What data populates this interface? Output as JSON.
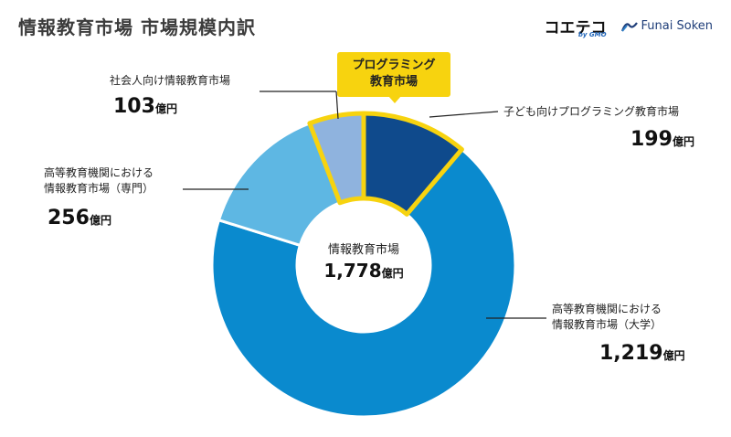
{
  "header": {
    "title": "情報教育市場 市場規模内訳",
    "logo_koetech": "コエテコ",
    "logo_koetech_sub": "by GMO",
    "logo_funai": "Funai Soken"
  },
  "callout": {
    "line1": "プログラミング",
    "line2": "教育市場"
  },
  "center": {
    "label": "情報教育市場",
    "value": "1,778",
    "unit": "億円"
  },
  "labels": {
    "kids": {
      "line1": "子ども向けプログラミング教育市場",
      "value": "199",
      "unit": "億円"
    },
    "univ": {
      "line1": "高等教育機関における",
      "line2": "情報教育市場（大学）",
      "value": "1,219",
      "unit": "億円"
    },
    "college": {
      "line1": "高等教育機関における",
      "line2": "情報教育市場（専門）",
      "value": "256",
      "unit": "億円"
    },
    "adult": {
      "line1": "社会人向け情報教育市場",
      "value": "103",
      "unit": "億円"
    }
  },
  "chart_data": {
    "type": "pie",
    "title": "情報教育市場 市場規模内訳",
    "total": 1778,
    "unit": "億円",
    "categories": [
      "子ども向けプログラミング教育市場",
      "高等教育機関における情報教育市場（大学）",
      "高等教育機関における情報教育市場（専門）",
      "社会人向け情報教育市場"
    ],
    "values": [
      199,
      1219,
      256,
      103
    ],
    "colors": [
      "#0f4a8c",
      "#0a8ace",
      "#5eb7e3",
      "#8fb3de"
    ],
    "highlight_color": "#f7d30f",
    "highlighted_categories": [
      "子ども向けプログラミング教育市場",
      "社会人向け情報教育市場"
    ]
  }
}
